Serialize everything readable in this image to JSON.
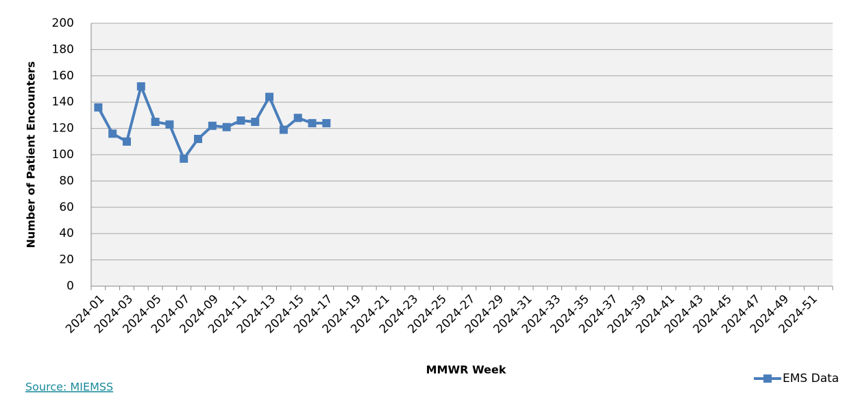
{
  "chart_data": {
    "type": "line",
    "x_label": "MMWR Week",
    "y_label": "Number of Patient Encounters",
    "categories": [
      "2024-01",
      null,
      "2024-03",
      null,
      "2024-05",
      null,
      "2024-07",
      null,
      "2024-09",
      null,
      "2024-11",
      null,
      "2024-13",
      null,
      "2024-15",
      null,
      "2024-17",
      null,
      "2024-19",
      null,
      "2024-21",
      null,
      "2024-23",
      null,
      "2024-25",
      null,
      "2024-27",
      null,
      "2024-29",
      null,
      "2024-31",
      null,
      "2024-33",
      null,
      "2024-35",
      null,
      "2024-37",
      null,
      "2024-39",
      null,
      "2024-41",
      null,
      "2024-43",
      null,
      "2024-45",
      null,
      "2024-47",
      null,
      "2024-49",
      null,
      "2024-51",
      null
    ],
    "series": [
      {
        "name": "EMS Data",
        "color": "#4a7ebb",
        "values": [
          136,
          116,
          110,
          152,
          125,
          123,
          97,
          112,
          122,
          121,
          126,
          125,
          144,
          119,
          128,
          124,
          124,
          null,
          null,
          null,
          null,
          null,
          null,
          null,
          null,
          null,
          null,
          null,
          null,
          null,
          null,
          null,
          null,
          null,
          null,
          null,
          null,
          null,
          null,
          null,
          null,
          null,
          null,
          null,
          null,
          null,
          null,
          null,
          null,
          null,
          null,
          null
        ]
      }
    ],
    "ylim": [
      0,
      200
    ],
    "yticks": [
      0,
      20,
      40,
      60,
      80,
      100,
      120,
      140,
      160,
      180,
      200
    ],
    "grid": true,
    "legend": "bottom-right"
  },
  "source": "Source: MIEMSS"
}
